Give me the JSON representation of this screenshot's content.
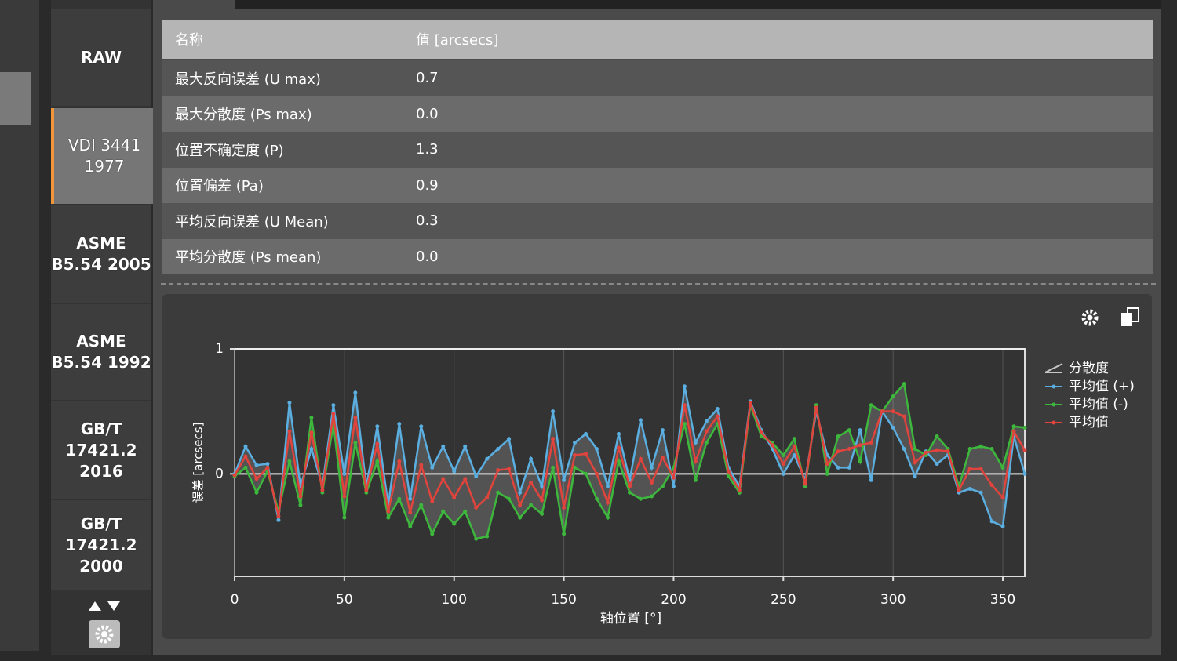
{
  "sidebar": {
    "buttons": [
      [
        "RAW"
      ],
      [
        "VDI 3441",
        "1977"
      ],
      [
        "ASME",
        "B5.54 2005"
      ],
      [
        "ASME",
        "B5.54 1992"
      ],
      [
        "GB/T",
        "17421.2",
        "2016"
      ],
      [
        "GB/T",
        "17421.2",
        "2000"
      ]
    ],
    "selected": 1
  },
  "table": {
    "header": [
      "名称",
      "值 [arcsecs]"
    ],
    "rows": [
      [
        "最大反向误差 (U max)",
        "0.7"
      ],
      [
        "最大分散度 (Ps max)",
        "0.0"
      ],
      [
        "位置不确定度 (P)",
        "1.3"
      ],
      [
        "位置偏差 (Pa)",
        "0.9"
      ],
      [
        "平均反向误差 (U Mean)",
        "0.3"
      ],
      [
        "平均分散度 (Ps mean)",
        "0.0"
      ]
    ]
  },
  "chart_data": {
    "type": "line",
    "x_label": "轴位置 [°]",
    "y_label": "误差 [arcsecs]",
    "band_name": "分散度",
    "band_color": "#c8c8c8",
    "x": [
      0,
      5,
      10,
      15,
      20,
      25,
      30,
      35,
      40,
      45,
      50,
      55,
      60,
      65,
      70,
      75,
      80,
      85,
      90,
      95,
      100,
      105,
      110,
      115,
      120,
      125,
      130,
      135,
      140,
      145,
      150,
      155,
      160,
      165,
      170,
      175,
      180,
      185,
      190,
      195,
      200,
      205,
      210,
      215,
      220,
      225,
      230,
      235,
      240,
      245,
      250,
      255,
      260,
      265,
      270,
      275,
      280,
      285,
      290,
      295,
      300,
      305,
      310,
      315,
      320,
      325,
      330,
      335,
      340,
      345,
      350,
      355,
      360
    ],
    "series": [
      {
        "name": "平均值 (+)",
        "color": "#5aaee0",
        "values": [
          0,
          0.22,
          0.07,
          0.08,
          -0.37,
          0.57,
          -0.1,
          0.2,
          -0.1,
          0.55,
          0,
          0.65,
          -0.1,
          0.38,
          -0.25,
          0.4,
          -0.2,
          0.38,
          0.05,
          0.22,
          0.02,
          0.22,
          -0.02,
          0.12,
          0.2,
          0.28,
          -0.15,
          0.12,
          -0.1,
          0.5,
          -0.05,
          0.25,
          0.32,
          0.2,
          -0.1,
          0.32,
          -0.05,
          0.43,
          0.05,
          0.35,
          -0.1,
          0.7,
          0.25,
          0.42,
          0.52,
          0.05,
          -0.1,
          0.58,
          0.35,
          0.2,
          0,
          0.15,
          -0.05,
          0.5,
          0.15,
          0.05,
          0.05,
          0.35,
          -0.05,
          0.5,
          0.37,
          0.2,
          -0.02,
          0.18,
          0.08,
          0.15,
          -0.15,
          -0.12,
          -0.15,
          -0.38,
          -0.42,
          0.3,
          0
        ]
      },
      {
        "name": "平均值 (-)",
        "color": "#3db83d",
        "values": [
          -0.02,
          0.05,
          -0.15,
          0.02,
          -0.3,
          0.1,
          -0.25,
          0.45,
          -0.15,
          0.4,
          -0.35,
          0.25,
          -0.15,
          0.1,
          -0.35,
          -0.2,
          -0.42,
          -0.25,
          -0.48,
          -0.3,
          -0.4,
          -0.3,
          -0.52,
          -0.5,
          -0.15,
          -0.2,
          -0.35,
          -0.25,
          -0.32,
          0.05,
          -0.48,
          0.05,
          0,
          -0.2,
          -0.35,
          0.1,
          -0.15,
          -0.2,
          -0.18,
          -0.1,
          0.05,
          0.4,
          -0.05,
          0.25,
          0.4,
          -0.02,
          -0.15,
          0.55,
          0.3,
          0.25,
          0.15,
          0.28,
          -0.1,
          0.55,
          0,
          0.3,
          0.35,
          0.1,
          0.55,
          0.5,
          0.62,
          0.72,
          0.2,
          0.15,
          0.3,
          0.2,
          -0.1,
          0.2,
          0.22,
          0.2,
          0.05,
          0.38,
          0.37
        ]
      },
      {
        "name": "平均值",
        "color": "#e0443c",
        "values": [
          -0.01,
          0.14,
          -0.04,
          0.05,
          -0.34,
          0.34,
          -0.18,
          0.33,
          -0.13,
          0.48,
          -0.18,
          0.45,
          -0.13,
          0.24,
          -0.3,
          0.1,
          -0.31,
          0.07,
          -0.22,
          -0.04,
          -0.19,
          -0.04,
          -0.27,
          -0.19,
          0.03,
          0.04,
          -0.25,
          -0.07,
          -0.21,
          0.28,
          -0.27,
          0.15,
          0.16,
          0,
          -0.23,
          0.21,
          -0.1,
          0.12,
          -0.07,
          0.13,
          -0.03,
          0.55,
          0.1,
          0.34,
          0.46,
          0.02,
          -0.13,
          0.57,
          0.33,
          0.23,
          0.08,
          0.22,
          -0.08,
          0.53,
          0.08,
          0.18,
          0.2,
          0.23,
          0.25,
          0.5,
          0.5,
          0.46,
          0.09,
          0.17,
          0.19,
          0.18,
          -0.13,
          0.04,
          0.04,
          -0.09,
          -0.19,
          0.34,
          0.19
        ]
      }
    ],
    "xlim": [
      0,
      360
    ],
    "xticks": [
      0,
      50,
      100,
      150,
      200,
      250,
      300,
      350
    ],
    "ylim": [
      -0.82,
      1
    ],
    "yticks": [
      0,
      1
    ],
    "grid": true
  }
}
